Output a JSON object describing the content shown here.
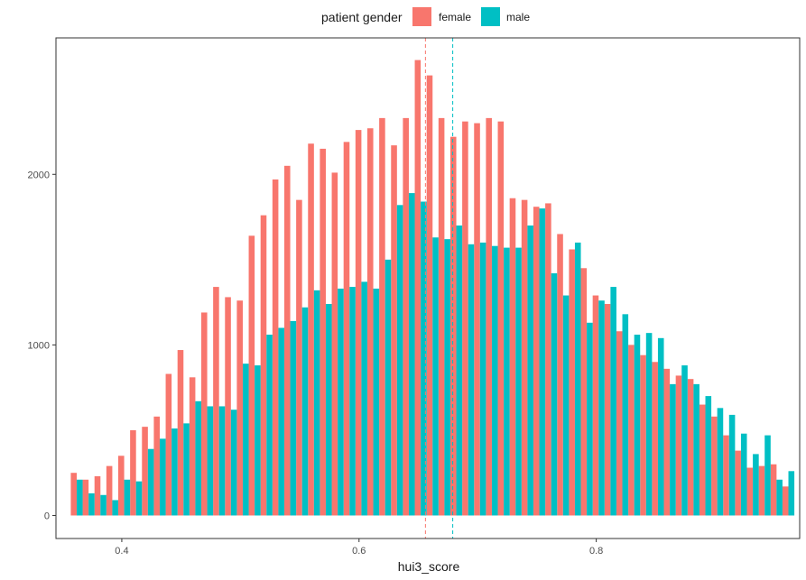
{
  "chart_data": {
    "type": "bar",
    "legend": {
      "title": "patient gender",
      "position": "top",
      "entries": [
        {
          "name": "female",
          "color": "#F8766D"
        },
        {
          "name": "male",
          "color": "#00BFC4"
        }
      ]
    },
    "xlabel": "hui3_score",
    "ylabel": "",
    "xlim": [
      0.3445,
      0.9715
    ],
    "ylim": [
      -135,
      2800
    ],
    "x_ticks": [
      {
        "value": 0.4,
        "label": "0.4"
      },
      {
        "value": 0.6,
        "label": "0.6"
      },
      {
        "value": 0.8,
        "label": "0.8"
      }
    ],
    "y_ticks": [
      {
        "value": 0,
        "label": "0"
      },
      {
        "value": 1000,
        "label": "1000"
      },
      {
        "value": 2000,
        "label": "2000"
      }
    ],
    "grid": false,
    "bin_width": 0.01,
    "bin_centers": [
      0.362,
      0.372,
      0.382,
      0.392,
      0.402,
      0.412,
      0.422,
      0.432,
      0.442,
      0.452,
      0.462,
      0.472,
      0.482,
      0.492,
      0.502,
      0.512,
      0.522,
      0.532,
      0.542,
      0.552,
      0.562,
      0.572,
      0.582,
      0.592,
      0.602,
      0.612,
      0.622,
      0.632,
      0.642,
      0.652,
      0.662,
      0.672,
      0.682,
      0.692,
      0.702,
      0.712,
      0.722,
      0.732,
      0.742,
      0.752,
      0.762,
      0.772,
      0.782,
      0.792,
      0.802,
      0.812,
      0.822,
      0.832,
      0.842,
      0.852,
      0.862,
      0.872,
      0.882,
      0.892,
      0.902,
      0.912,
      0.922,
      0.932,
      0.942,
      0.952,
      0.962
    ],
    "series": [
      {
        "name": "female",
        "color": "#F8766D",
        "values": [
          250,
          210,
          230,
          290,
          350,
          500,
          520,
          580,
          830,
          970,
          810,
          1190,
          1340,
          1280,
          1260,
          1640,
          1760,
          1970,
          2050,
          1850,
          2180,
          2150,
          2010,
          2190,
          2260,
          2270,
          2330,
          2170,
          2330,
          2670,
          2580,
          2330,
          2220,
          2310,
          2300,
          2330,
          2310,
          1860,
          1850,
          1810,
          1830,
          1650,
          1560,
          1450,
          1290,
          1240,
          1080,
          1000,
          940,
          900,
          860,
          820,
          800,
          650,
          580,
          470,
          380,
          280,
          290,
          300,
          170
        ]
      },
      {
        "name": "male",
        "color": "#00BFC4",
        "values": [
          210,
          130,
          120,
          90,
          210,
          200,
          390,
          450,
          510,
          540,
          670,
          640,
          640,
          620,
          890,
          880,
          1060,
          1100,
          1140,
          1220,
          1320,
          1240,
          1330,
          1340,
          1370,
          1330,
          1500,
          1820,
          1890,
          1840,
          1630,
          1620,
          1700,
          1590,
          1600,
          1580,
          1570,
          1570,
          1700,
          1800,
          1420,
          1290,
          1600,
          1130,
          1260,
          1340,
          1180,
          1060,
          1070,
          1040,
          770,
          880,
          770,
          700,
          630,
          590,
          480,
          360,
          470,
          210,
          260
        ]
      }
    ],
    "reference_lines": [
      {
        "series": "female",
        "x": 0.656,
        "style": "dashed",
        "color": "#F8766D"
      },
      {
        "series": "male",
        "x": 0.679,
        "style": "dashed",
        "color": "#00BFC4"
      }
    ]
  }
}
